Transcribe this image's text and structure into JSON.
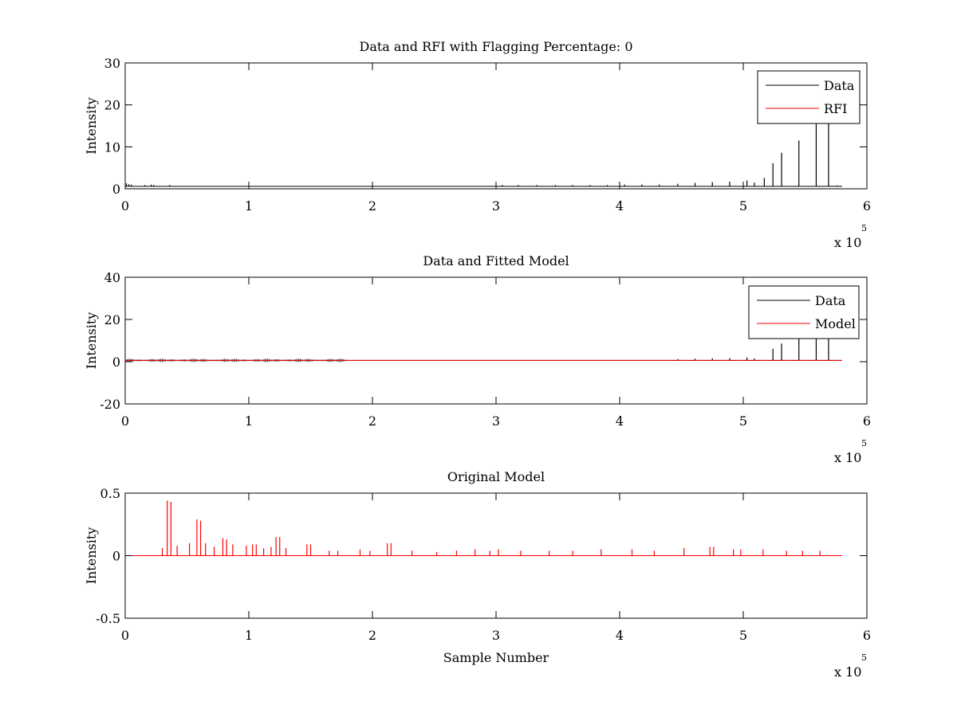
{
  "figure": {
    "background": "#ffffff",
    "colors": {
      "data": "#000000",
      "red": "#ff0000",
      "axes": "#000000"
    }
  },
  "chart_data": [
    {
      "type": "line",
      "title": "Data and RFI with Flagging Percentage: 0",
      "xlabel": "",
      "ylabel": "Intensity",
      "xlim": [
        0,
        600000
      ],
      "ylim": [
        0,
        30
      ],
      "xticks": [
        0,
        100000,
        200000,
        300000,
        400000,
        500000,
        600000
      ],
      "xtick_labels": [
        "0",
        "1",
        "2",
        "3",
        "4",
        "5",
        "6"
      ],
      "yticks": [
        0,
        10,
        20,
        30
      ],
      "ytick_labels": [
        "0",
        "10",
        "20",
        "30"
      ],
      "x_multiplier": {
        "base": "x 10",
        "exponent": "5"
      },
      "grid": false,
      "legend": {
        "position": "top-right",
        "entries": [
          "Data",
          "RFI"
        ]
      },
      "series": [
        {
          "name": "Data",
          "color": "#000000",
          "baseline": 0.6,
          "x_end": 580000,
          "spikes": [
            {
              "x": 1000,
              "y": 1.3
            },
            {
              "x": 3000,
              "y": 1.1
            },
            {
              "x": 5000,
              "y": 1.0
            },
            {
              "x": 16000,
              "y": 0.9
            },
            {
              "x": 21000,
              "y": 1.0
            },
            {
              "x": 23000,
              "y": 0.9
            },
            {
              "x": 36000,
              "y": 0.9
            },
            {
              "x": 305000,
              "y": 0.9
            },
            {
              "x": 318000,
              "y": 0.9
            },
            {
              "x": 333000,
              "y": 0.9
            },
            {
              "x": 348000,
              "y": 0.9
            },
            {
              "x": 362000,
              "y": 0.9
            },
            {
              "x": 376000,
              "y": 0.9
            },
            {
              "x": 390000,
              "y": 0.9
            },
            {
              "x": 404000,
              "y": 1.0
            },
            {
              "x": 418000,
              "y": 1.0
            },
            {
              "x": 432000,
              "y": 1.0
            },
            {
              "x": 447000,
              "y": 1.2
            },
            {
              "x": 461000,
              "y": 1.4
            },
            {
              "x": 475000,
              "y": 1.6
            },
            {
              "x": 489000,
              "y": 1.7
            },
            {
              "x": 503000,
              "y": 2.0
            },
            {
              "x": 509000,
              "y": 1.5
            },
            {
              "x": 517000,
              "y": 2.6
            },
            {
              "x": 524000,
              "y": 6.1
            },
            {
              "x": 531000,
              "y": 8.6
            },
            {
              "x": 545000,
              "y": 11.5
            },
            {
              "x": 559000,
              "y": 15.5
            },
            {
              "x": 569000,
              "y": 16.0
            },
            {
              "x": 576000,
              "y": 0.8
            }
          ]
        },
        {
          "name": "RFI",
          "color": "#ff0000",
          "values": []
        }
      ]
    },
    {
      "type": "line",
      "title": "Data and Fitted Model",
      "xlabel": "",
      "ylabel": "Intensity",
      "xlim": [
        0,
        600000
      ],
      "ylim": [
        -20,
        40
      ],
      "xticks": [
        0,
        100000,
        200000,
        300000,
        400000,
        500000,
        600000
      ],
      "xtick_labels": [
        "0",
        "1",
        "2",
        "3",
        "4",
        "5",
        "6"
      ],
      "yticks": [
        -20,
        0,
        20,
        40
      ],
      "ytick_labels": [
        "-20",
        "0",
        "20",
        "40"
      ],
      "x_multiplier": {
        "base": "x 10",
        "exponent": "5"
      },
      "grid": false,
      "legend": {
        "position": "top-right",
        "entries": [
          "Data",
          "Model"
        ]
      },
      "series": [
        {
          "name": "Data",
          "color": "#000000",
          "baseline": 0.6,
          "x_end": 580000,
          "noise_region": [
            0,
            180000
          ],
          "spikes": [
            {
              "x": 447000,
              "y": 1.2
            },
            {
              "x": 461000,
              "y": 1.4
            },
            {
              "x": 475000,
              "y": 1.6
            },
            {
              "x": 489000,
              "y": 1.7
            },
            {
              "x": 503000,
              "y": 2.0
            },
            {
              "x": 509000,
              "y": 1.5
            },
            {
              "x": 524000,
              "y": 6.1
            },
            {
              "x": 531000,
              "y": 8.6
            },
            {
              "x": 545000,
              "y": 11.5
            },
            {
              "x": 559000,
              "y": 15.5
            },
            {
              "x": 569000,
              "y": 16.0
            }
          ]
        },
        {
          "name": "Model",
          "color": "#ff0000",
          "baseline": 0.6,
          "x_end": 580000
        }
      ]
    },
    {
      "type": "line",
      "title": "Original Model",
      "xlabel": "Sample Number",
      "ylabel": "Intensity",
      "xlim": [
        0,
        600000
      ],
      "ylim": [
        -0.5,
        0.5
      ],
      "xticks": [
        0,
        100000,
        200000,
        300000,
        400000,
        500000,
        600000
      ],
      "xtick_labels": [
        "0",
        "1",
        "2",
        "3",
        "4",
        "5",
        "6"
      ],
      "yticks": [
        -0.5,
        0,
        0.5
      ],
      "ytick_labels": [
        "-0.5",
        "0",
        "0.5"
      ],
      "x_multiplier": {
        "base": "x 10",
        "exponent": "5"
      },
      "grid": false,
      "series": [
        {
          "color": "#ff0000",
          "baseline": 0.0,
          "x_end": 580000,
          "spikes": [
            {
              "x": 30000,
              "y": 0.06
            },
            {
              "x": 34000,
              "y": 0.44
            },
            {
              "x": 37000,
              "y": 0.43
            },
            {
              "x": 42000,
              "y": 0.08
            },
            {
              "x": 52000,
              "y": 0.1
            },
            {
              "x": 58000,
              "y": 0.29
            },
            {
              "x": 61000,
              "y": 0.28
            },
            {
              "x": 65000,
              "y": 0.1
            },
            {
              "x": 72000,
              "y": 0.07
            },
            {
              "x": 79000,
              "y": 0.14
            },
            {
              "x": 82000,
              "y": 0.13
            },
            {
              "x": 87000,
              "y": 0.09
            },
            {
              "x": 98000,
              "y": 0.08
            },
            {
              "x": 103000,
              "y": 0.09
            },
            {
              "x": 106000,
              "y": 0.09
            },
            {
              "x": 112000,
              "y": 0.06
            },
            {
              "x": 118000,
              "y": 0.07
            },
            {
              "x": 122000,
              "y": 0.15
            },
            {
              "x": 125000,
              "y": 0.15
            },
            {
              "x": 130000,
              "y": 0.06
            },
            {
              "x": 147000,
              "y": 0.09
            },
            {
              "x": 150000,
              "y": 0.09
            },
            {
              "x": 165000,
              "y": 0.04
            },
            {
              "x": 172000,
              "y": 0.04
            },
            {
              "x": 190000,
              "y": 0.05
            },
            {
              "x": 198000,
              "y": 0.04
            },
            {
              "x": 212000,
              "y": 0.1
            },
            {
              "x": 215000,
              "y": 0.1
            },
            {
              "x": 232000,
              "y": 0.04
            },
            {
              "x": 252000,
              "y": 0.03
            },
            {
              "x": 268000,
              "y": 0.04
            },
            {
              "x": 283000,
              "y": 0.05
            },
            {
              "x": 295000,
              "y": 0.04
            },
            {
              "x": 302000,
              "y": 0.05
            },
            {
              "x": 320000,
              "y": 0.04
            },
            {
              "x": 343000,
              "y": 0.04
            },
            {
              "x": 362000,
              "y": 0.04
            },
            {
              "x": 385000,
              "y": 0.05
            },
            {
              "x": 410000,
              "y": 0.05
            },
            {
              "x": 428000,
              "y": 0.04
            },
            {
              "x": 452000,
              "y": 0.06
            },
            {
              "x": 473000,
              "y": 0.07
            },
            {
              "x": 476000,
              "y": 0.07
            },
            {
              "x": 492000,
              "y": 0.05
            },
            {
              "x": 498000,
              "y": 0.05
            },
            {
              "x": 516000,
              "y": 0.05
            },
            {
              "x": 535000,
              "y": 0.04
            },
            {
              "x": 548000,
              "y": 0.04
            },
            {
              "x": 562000,
              "y": 0.04
            }
          ]
        }
      ]
    }
  ]
}
